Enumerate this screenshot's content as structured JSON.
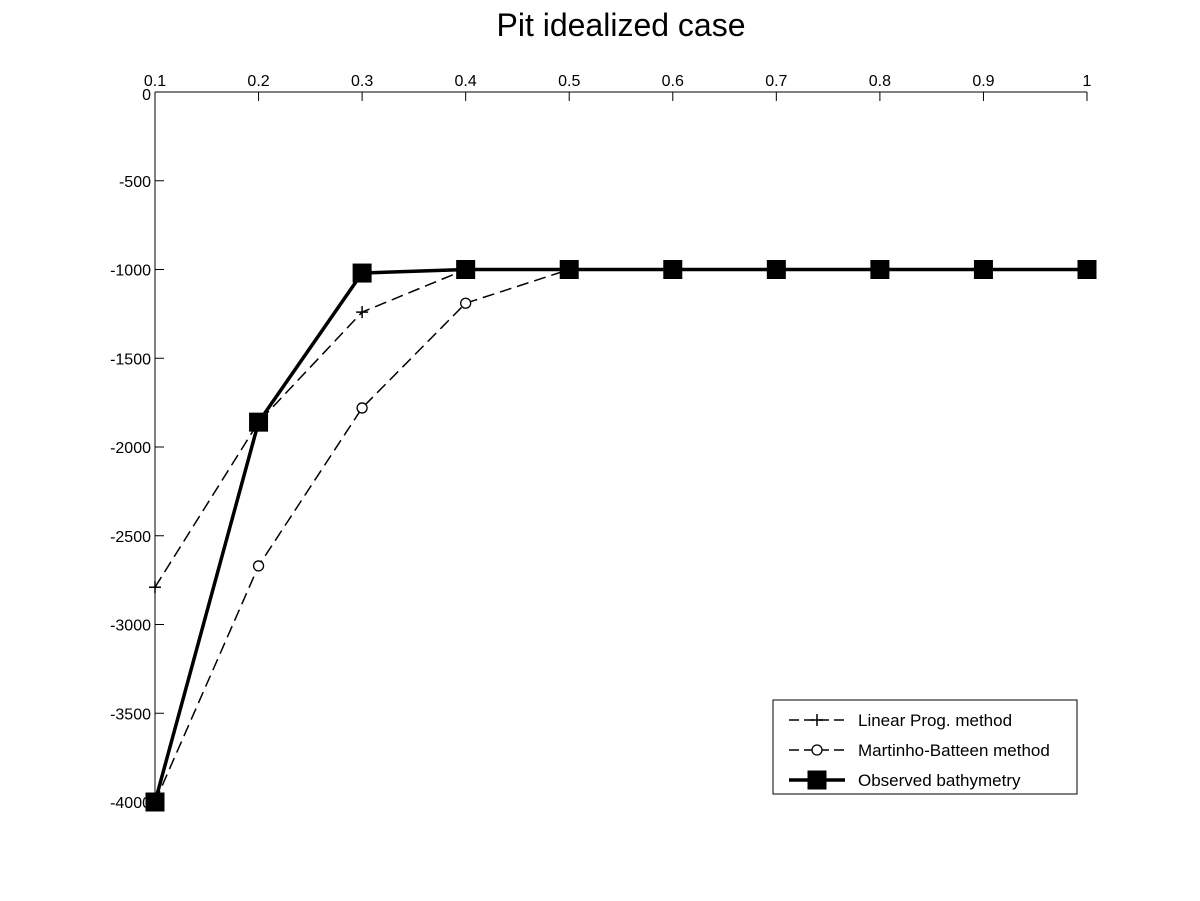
{
  "chart_data": {
    "type": "line",
    "title": "Pit idealized case",
    "xlabel": "",
    "ylabel": "",
    "x_axis_location": "top",
    "xlim": [
      0.1,
      1
    ],
    "ylim": [
      -4000,
      0
    ],
    "x_ticks": [
      "0.1",
      "0.2",
      "0.3",
      "0.4",
      "0.5",
      "0.6",
      "0.7",
      "0.8",
      "0.9",
      "1"
    ],
    "y_ticks": [
      "0",
      "-500",
      "-1000",
      "-1500",
      "-2000",
      "-2500",
      "-3000",
      "-3500",
      "-4000"
    ],
    "grid": false,
    "legend_position": "bottom-right",
    "x": [
      0.1,
      0.2,
      0.3,
      0.4,
      0.5,
      0.6,
      0.7,
      0.8,
      0.9,
      1.0
    ],
    "series": [
      {
        "name": "Linear Prog. method",
        "style": "dashed",
        "marker": "plus",
        "color": "#000000",
        "values": [
          -2790,
          -1860,
          -1240,
          -1000,
          -1000,
          -1000,
          -1000,
          -1000,
          -1000,
          -1000
        ]
      },
      {
        "name": "Martinho-Batteen method",
        "style": "dashed",
        "marker": "circle",
        "color": "#000000",
        "values": [
          -4000,
          -2670,
          -1780,
          -1190,
          -1000,
          -1000,
          -1000,
          -1000,
          -1000,
          -1000
        ]
      },
      {
        "name": "Observed bathymetry",
        "style": "solid-thick",
        "marker": "square",
        "color": "#000000",
        "values": [
          -4000,
          -1860,
          -1020,
          -1000,
          -1000,
          -1000,
          -1000,
          -1000,
          -1000,
          -1000
        ]
      }
    ]
  }
}
